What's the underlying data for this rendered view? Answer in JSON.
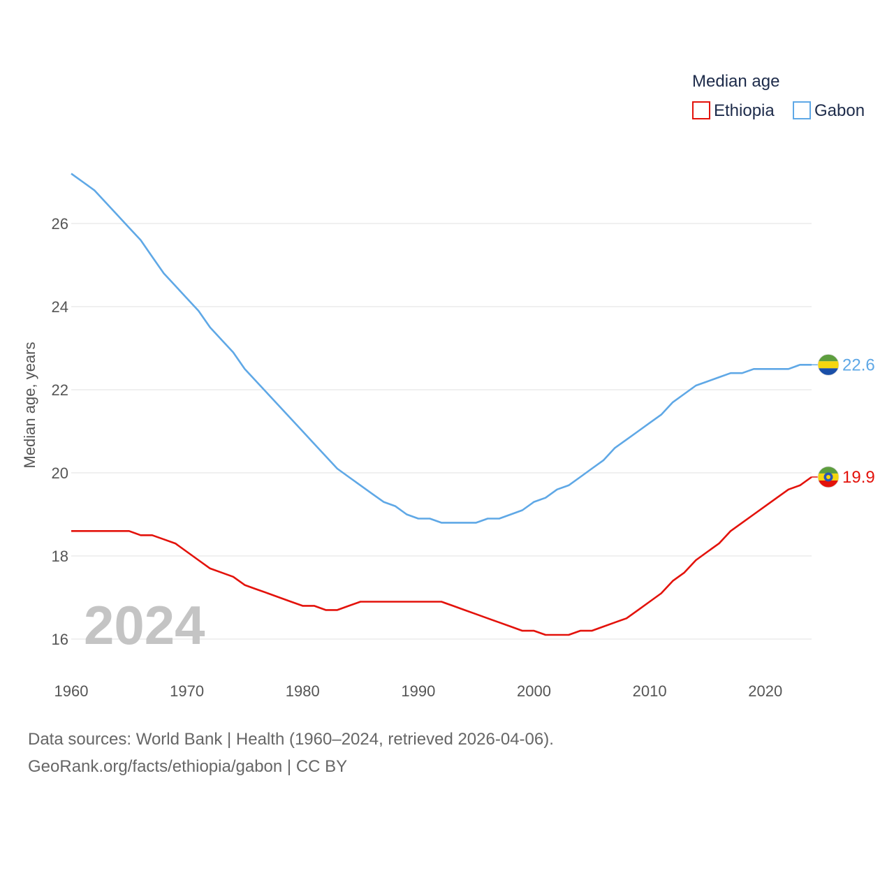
{
  "chart_data": {
    "type": "line",
    "ylabel": "Median age, years",
    "xlabel": "",
    "xlim": [
      1960,
      2024
    ],
    "ylim": [
      15.5,
      27.5
    ],
    "x_ticks": [
      1960,
      1970,
      1980,
      1990,
      2000,
      2010,
      2020
    ],
    "y_ticks": [
      16,
      18,
      20,
      22,
      24,
      26
    ],
    "legend": {
      "title": "Median age",
      "placement": "top-right"
    },
    "year_label": "2024",
    "series": [
      {
        "name": "Ethiopia",
        "color": "#e3120b",
        "end_label": "19.9",
        "flag": "ethiopia-flag",
        "points": [
          [
            1960,
            18.6
          ],
          [
            1961,
            18.6
          ],
          [
            1962,
            18.6
          ],
          [
            1963,
            18.6
          ],
          [
            1964,
            18.6
          ],
          [
            1965,
            18.6
          ],
          [
            1966,
            18.5
          ],
          [
            1967,
            18.5
          ],
          [
            1968,
            18.4
          ],
          [
            1969,
            18.3
          ],
          [
            1970,
            18.1
          ],
          [
            1971,
            17.9
          ],
          [
            1972,
            17.7
          ],
          [
            1973,
            17.6
          ],
          [
            1974,
            17.5
          ],
          [
            1975,
            17.3
          ],
          [
            1976,
            17.2
          ],
          [
            1977,
            17.1
          ],
          [
            1978,
            17.0
          ],
          [
            1979,
            16.9
          ],
          [
            1980,
            16.8
          ],
          [
            1981,
            16.8
          ],
          [
            1982,
            16.7
          ],
          [
            1983,
            16.7
          ],
          [
            1984,
            16.8
          ],
          [
            1985,
            16.9
          ],
          [
            1986,
            16.9
          ],
          [
            1987,
            16.9
          ],
          [
            1988,
            16.9
          ],
          [
            1989,
            16.9
          ],
          [
            1990,
            16.9
          ],
          [
            1991,
            16.9
          ],
          [
            1992,
            16.9
          ],
          [
            1993,
            16.8
          ],
          [
            1994,
            16.7
          ],
          [
            1995,
            16.6
          ],
          [
            1996,
            16.5
          ],
          [
            1997,
            16.4
          ],
          [
            1998,
            16.3
          ],
          [
            1999,
            16.2
          ],
          [
            2000,
            16.2
          ],
          [
            2001,
            16.1
          ],
          [
            2002,
            16.1
          ],
          [
            2003,
            16.1
          ],
          [
            2004,
            16.2
          ],
          [
            2005,
            16.2
          ],
          [
            2006,
            16.3
          ],
          [
            2007,
            16.4
          ],
          [
            2008,
            16.5
          ],
          [
            2009,
            16.7
          ],
          [
            2010,
            16.9
          ],
          [
            2011,
            17.1
          ],
          [
            2012,
            17.4
          ],
          [
            2013,
            17.6
          ],
          [
            2014,
            17.9
          ],
          [
            2015,
            18.1
          ],
          [
            2016,
            18.3
          ],
          [
            2017,
            18.6
          ],
          [
            2018,
            18.8
          ],
          [
            2019,
            19.0
          ],
          [
            2020,
            19.2
          ],
          [
            2021,
            19.4
          ],
          [
            2022,
            19.6
          ],
          [
            2023,
            19.7
          ],
          [
            2024,
            19.9
          ]
        ]
      },
      {
        "name": "Gabon",
        "color": "#5fa8e6",
        "end_label": "22.6",
        "flag": "gabon-flag",
        "points": [
          [
            1960,
            27.2
          ],
          [
            1961,
            27.0
          ],
          [
            1962,
            26.8
          ],
          [
            1963,
            26.5
          ],
          [
            1964,
            26.2
          ],
          [
            1965,
            25.9
          ],
          [
            1966,
            25.6
          ],
          [
            1967,
            25.2
          ],
          [
            1968,
            24.8
          ],
          [
            1969,
            24.5
          ],
          [
            1970,
            24.2
          ],
          [
            1971,
            23.9
          ],
          [
            1972,
            23.5
          ],
          [
            1973,
            23.2
          ],
          [
            1974,
            22.9
          ],
          [
            1975,
            22.5
          ],
          [
            1976,
            22.2
          ],
          [
            1977,
            21.9
          ],
          [
            1978,
            21.6
          ],
          [
            1979,
            21.3
          ],
          [
            1980,
            21.0
          ],
          [
            1981,
            20.7
          ],
          [
            1982,
            20.4
          ],
          [
            1983,
            20.1
          ],
          [
            1984,
            19.9
          ],
          [
            1985,
            19.7
          ],
          [
            1986,
            19.5
          ],
          [
            1987,
            19.3
          ],
          [
            1988,
            19.2
          ],
          [
            1989,
            19.0
          ],
          [
            1990,
            18.9
          ],
          [
            1991,
            18.9
          ],
          [
            1992,
            18.8
          ],
          [
            1993,
            18.8
          ],
          [
            1994,
            18.8
          ],
          [
            1995,
            18.8
          ],
          [
            1996,
            18.9
          ],
          [
            1997,
            18.9
          ],
          [
            1998,
            19.0
          ],
          [
            1999,
            19.1
          ],
          [
            2000,
            19.3
          ],
          [
            2001,
            19.4
          ],
          [
            2002,
            19.6
          ],
          [
            2003,
            19.7
          ],
          [
            2004,
            19.9
          ],
          [
            2005,
            20.1
          ],
          [
            2006,
            20.3
          ],
          [
            2007,
            20.6
          ],
          [
            2008,
            20.8
          ],
          [
            2009,
            21.0
          ],
          [
            2010,
            21.2
          ],
          [
            2011,
            21.4
          ],
          [
            2012,
            21.7
          ],
          [
            2013,
            21.9
          ],
          [
            2014,
            22.1
          ],
          [
            2015,
            22.2
          ],
          [
            2016,
            22.3
          ],
          [
            2017,
            22.4
          ],
          [
            2018,
            22.4
          ],
          [
            2019,
            22.5
          ],
          [
            2020,
            22.5
          ],
          [
            2021,
            22.5
          ],
          [
            2022,
            22.5
          ],
          [
            2023,
            22.6
          ],
          [
            2024,
            22.6
          ]
        ]
      }
    ]
  },
  "footer": {
    "sources": "Data sources: World Bank | Health (1960–2024, retrieved 2026-04-06).",
    "credit": "GeoRank.org/facts/ethiopia/gabon | CC BY"
  },
  "colors": {
    "gridline": "#e6e6e6",
    "flag_green": "#5d9e3e",
    "flag_yellow": "#f5d60f",
    "flag_red": "#e3120b",
    "flag_blue": "#1a4fa8",
    "emblem_blue": "#2856b8"
  }
}
